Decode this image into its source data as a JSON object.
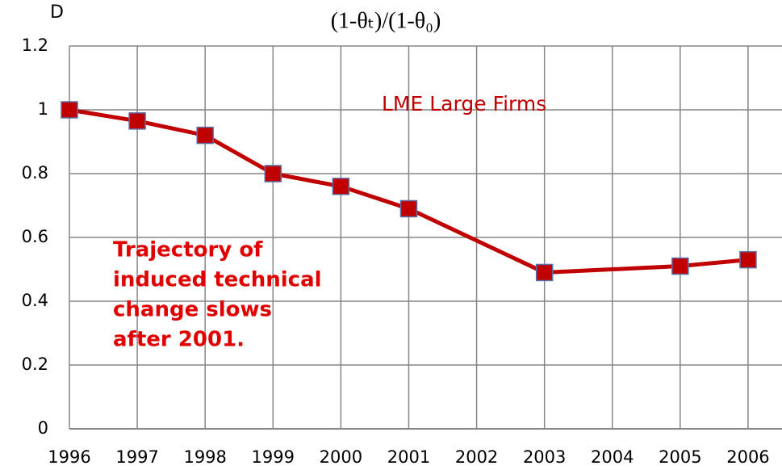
{
  "chart_data": {
    "type": "line",
    "panel_label": "D",
    "title": "(1-θₜ)/(1-θ₀)",
    "x": [
      1996,
      1997,
      1998,
      1999,
      2000,
      2001,
      2003,
      2005,
      2006
    ],
    "series": [
      {
        "name": "LME Large Firms",
        "color": "#c00000",
        "values": [
          1.0,
          0.965,
          0.92,
          0.8,
          0.76,
          0.69,
          0.49,
          0.51,
          0.53
        ]
      }
    ],
    "xlim": [
      1996,
      2006.5
    ],
    "xticks": [
      1996,
      1997,
      1998,
      1999,
      2000,
      2001,
      2002,
      2003,
      2004,
      2005,
      2006
    ],
    "ylim": [
      0,
      1.2
    ],
    "yticks": [
      0,
      0.2,
      0.4,
      0.6,
      0.8,
      1,
      1.2
    ],
    "grid": true,
    "annotations": [
      [
        "Trajectory of",
        "induced technical",
        "change slows",
        "after 2001."
      ]
    ]
  }
}
